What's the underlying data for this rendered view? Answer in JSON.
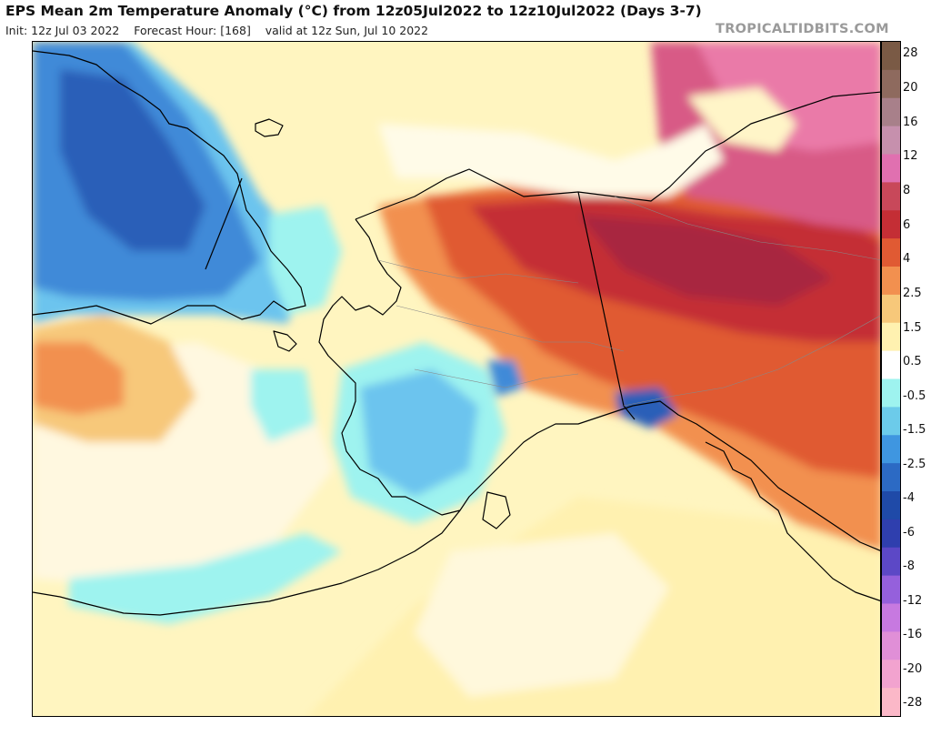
{
  "header": {
    "title": "EPS Mean 2m Temperature Anomaly (°C) from 12z05Jul2022 to 12z10Jul2022 (Days 3-7)",
    "init": "Init: 12z Jul 03 2022",
    "forecast_hour": "Forecast Hour: [168]",
    "valid": "valid at 12z Sun, Jul 10 2022",
    "brand": "TROPICALTIDBITS.COM"
  },
  "legend": {
    "labels": [
      "28",
      "20",
      "16",
      "12",
      "8",
      "6",
      "4",
      "2.5",
      "1.5",
      "0.5",
      "-0.5",
      "-1.5",
      "-2.5",
      "-4",
      "-6",
      "-8",
      "-12",
      "-16",
      "-20",
      "-28"
    ],
    "colors": [
      "#7a5a45",
      "#8e6a5e",
      "#a8808a",
      "#c690ad",
      "#e070b0",
      "#c8485a",
      "#c42e35",
      "#e05a33",
      "#f2904f",
      "#f7c87a",
      "#fff1b0",
      "#ffffff",
      "#9ef3ef",
      "#6ccbea",
      "#3f96e0",
      "#2c6ac4",
      "#1f4aa8",
      "#2f3fae",
      "#5c48c6",
      "#9560dc",
      "#c779e0",
      "#e08fd7",
      "#f2a3cf",
      "#fbb8c8"
    ]
  },
  "map": {
    "region": "Alaska",
    "palette": {
      "deep_blue": "#2a5fb8",
      "mid_blue": "#3f8ad8",
      "light_blue": "#6cc4ee",
      "cyan": "#9ef3ef",
      "white": "#ffffff",
      "pale_yellow": "#fff1b0",
      "light_orange": "#f7c87a",
      "orange": "#f2904f",
      "red_orange": "#e05a33",
      "red": "#c42e35",
      "dark_red": "#a82840",
      "pink": "#d85a86",
      "light_pink": "#ea7aa8"
    }
  }
}
